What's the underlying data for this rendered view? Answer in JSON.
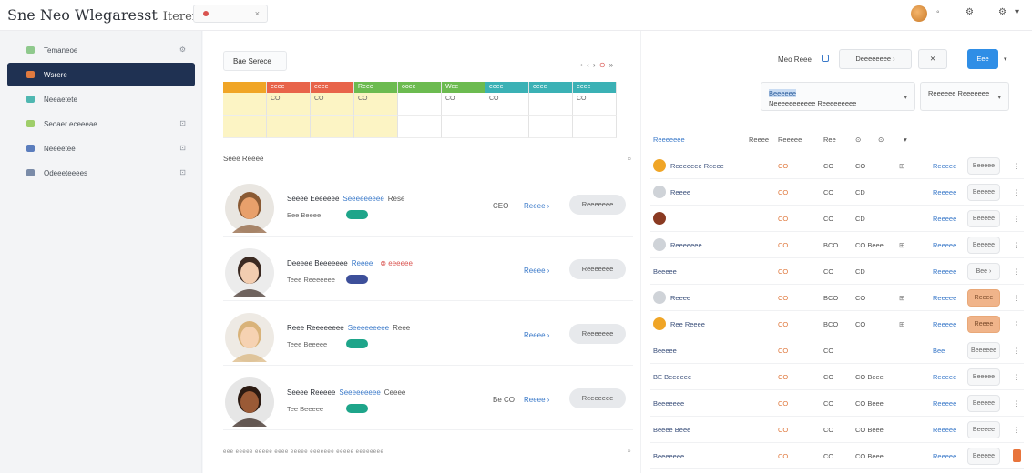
{
  "app": {
    "title": "Sne Neo Wlegaresst",
    "subtitle": "Iteren",
    "search_close": "×"
  },
  "top_icons": [
    "bell-icon",
    "gear-icon"
  ],
  "top_caret": "▾",
  "sidebar": {
    "items": [
      {
        "label": "Temaneoe",
        "icon_color": "#8fc98d",
        "right": "⚙",
        "active": false
      },
      {
        "label": "Wsrere",
        "icon_color": "#e07a3f",
        "right": "",
        "active": true
      },
      {
        "label": "Neeaetete",
        "icon_color": "#4fb7b1",
        "right": "",
        "active": false
      },
      {
        "label": "Seoaer eceeeae",
        "icon_color": "#9fce6a",
        "right": "⊡",
        "active": false
      },
      {
        "label": "Neeeetee",
        "icon_color": "#5b7dbd",
        "right": "⊡",
        "active": false
      },
      {
        "label": "Odeeeteeees",
        "icon_color": "#7a8ba8",
        "right": "⊡",
        "active": false
      }
    ]
  },
  "main": {
    "tab_label": "Bae Serece",
    "pager": {
      "left": "◦ ‹ ›",
      "dot": "⊙",
      "right": "»"
    },
    "grid": {
      "headers": [
        {
          "label": "",
          "color": "#f0a526"
        },
        {
          "label": "eeee",
          "color": "#e8644a"
        },
        {
          "label": "eeee",
          "color": "#e8644a"
        },
        {
          "label": "Reee",
          "color": "#6cbb50"
        },
        {
          "label": "ooee",
          "color": "#6cbb50"
        },
        {
          "label": "Wee",
          "color": "#6cbb50"
        },
        {
          "label": "eeee",
          "color": "#3bb1b5"
        },
        {
          "label": "eeee",
          "color": "#3bb1b5"
        },
        {
          "label": "eeee",
          "color": "#3bb1b5"
        }
      ],
      "rows": [
        [
          "",
          "CO",
          "CO",
          "CO",
          "",
          "CO",
          "CO",
          "",
          "CO"
        ],
        [
          "",
          "",
          "",
          "",
          "",
          "",
          "",
          "",
          ""
        ]
      ]
    },
    "section_title": "Seee Reeee",
    "section_icon": "⌕",
    "people": [
      {
        "name": "Seeee Eeeeeee",
        "link": "Seeeeeeeee",
        "tag": "Rese",
        "alert": "",
        "sub": "Eee Beeee",
        "pill_color": "#1ea58a",
        "mid": "CEO",
        "action": "Reeee ›",
        "button": "Reeeeeee",
        "skin": "#e8a06b",
        "hair": "#8a5a34",
        "bg": "#e9e6e1"
      },
      {
        "name": "Deeeee Beeeeeee",
        "link": "Reeee",
        "tag": "",
        "alert": "⊗ eeeeee",
        "sub": "Teee Reeeeeee",
        "pill_color": "#3d4f9a",
        "mid": "",
        "action": "Reeee ›",
        "button": "Reeeeeee",
        "skin": "#f2cdb0",
        "hair": "#3b2a22",
        "bg": "#ececec"
      },
      {
        "name": "Reee Reeeeeeee",
        "link": "Seeeeeeeee",
        "tag": "Reee",
        "alert": "",
        "sub": "Teee Beeeee",
        "pill_color": "#1ea58a",
        "mid": "",
        "action": "Reeee ›",
        "button": "Reeeeeee",
        "skin": "#f6d2b2",
        "hair": "#d9b37a",
        "bg": "#eeeae4"
      },
      {
        "name": "Seeee Reeeee",
        "link": "Seeeeeeeee",
        "tag": "Ceeee",
        "alert": "",
        "sub": "Tee Beeeee",
        "pill_color": "#1ea58a",
        "mid": "Be CO",
        "action": "Reeee ›",
        "button": "Reeeeeee",
        "skin": "#9a5a36",
        "hair": "#2b1a12",
        "bg": "#e6e6e6"
      }
    ],
    "footnote": "eee eeeee eeeee eeee eeeee eeeeeee eeeee eeeeeeee",
    "footnote_icon": "⌕"
  },
  "right": {
    "top_label": "Meo Reee",
    "btn_filter": "Deeeeeeee ›",
    "btn_x": "✕",
    "btn_primary": "Eee",
    "select1_hl": "Beeeeee",
    "select1_rest": "Neeeeeeeeeee Reeeeeeeee",
    "select2": "Reeeeee Reeeeeee",
    "columns": [
      "Reeeeeee",
      "Reeee",
      "Reeeee",
      "Ree",
      "⊙",
      "⊙",
      "▾"
    ],
    "rows": [
      {
        "name": "Reeeeeee Reeee",
        "icon": "#f0a526",
        "a": "CO",
        "b": "CO",
        "c": "CO",
        "d": "⊞",
        "e": "Reeeee",
        "chip": "Beeeee",
        "chip_or": false,
        "end": "⋮"
      },
      {
        "name": "Reeee",
        "icon": "#cfd3d8",
        "a": "CO",
        "b": "CO",
        "c": "CD",
        "d": "",
        "e": "Reeeee",
        "chip": "Beeeee",
        "chip_or": false,
        "end": "⋮"
      },
      {
        "name": "",
        "icon": "#8a3a22",
        "a": "CO",
        "b": "CO",
        "c": "CD",
        "d": "",
        "e": "Reeeee",
        "chip": "Beeeee",
        "chip_or": false,
        "end": "⋮"
      },
      {
        "name": "Reeeeeee",
        "icon": "#cfd3d8",
        "a": "CO",
        "b": "BCO",
        "c": "CO Beee",
        "d": "⊞",
        "e": "Reeeee",
        "chip": "Beeeee",
        "chip_or": false,
        "end": "⋮"
      },
      {
        "name": "Beeeee",
        "icon": "",
        "a": "CO",
        "b": "CO",
        "c": "CD",
        "d": "",
        "e": "Reeeee",
        "chip": "Bee ›",
        "chip_or": false,
        "end": "⋮"
      },
      {
        "name": "Reeee",
        "icon": "#cfd3d8",
        "a": "CO",
        "b": "BCO",
        "c": "CO",
        "d": "⊞",
        "e": "Reeeee",
        "chip": "Reeee",
        "chip_or": true,
        "end": "⋮"
      },
      {
        "name": "Ree Reeee",
        "icon": "#f0a526",
        "a": "CO",
        "b": "BCO",
        "c": "CO",
        "d": "⊞",
        "e": "Reeeee",
        "chip": "Reeee",
        "chip_or": true,
        "end": "⋮"
      },
      {
        "name": "Beeeee",
        "icon": "",
        "a": "CO",
        "b": "CO",
        "c": "",
        "d": "",
        "e": "Bee",
        "chip": "Beeeeee",
        "chip_or": false,
        "end": "⋮"
      },
      {
        "name": "BE Beeeeee",
        "icon": "",
        "a": "CO",
        "b": "CO",
        "c": "CO Beee",
        "d": "",
        "e": "Reeeee",
        "chip": "Beeeee",
        "chip_or": false,
        "end": "⋮"
      },
      {
        "name": "Beeeeeee",
        "icon": "",
        "a": "CO",
        "b": "CO",
        "c": "CO Beee",
        "d": "",
        "e": "Reeeee",
        "chip": "Beeeee",
        "chip_or": false,
        "end": "⋮"
      },
      {
        "name": "Beeee Beee",
        "icon": "",
        "a": "CO",
        "b": "CO",
        "c": "CO Beee",
        "d": "",
        "e": "Reeeee",
        "chip": "Beeeee",
        "chip_or": false,
        "end": "⋮"
      },
      {
        "name": "Beeeeeee",
        "icon": "",
        "a": "CO",
        "b": "CO",
        "c": "CO Beee",
        "d": "",
        "e": "Reeeee",
        "chip": "Beeeee",
        "chip_or": false,
        "end": "▮",
        "end_red": true
      }
    ]
  }
}
